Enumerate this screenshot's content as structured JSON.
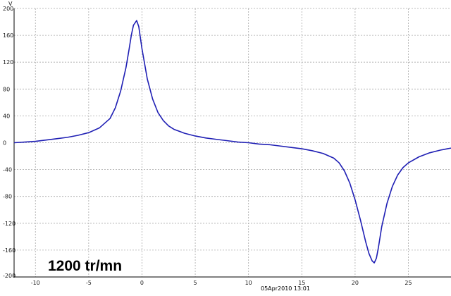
{
  "chart_data": {
    "type": "line",
    "title": "",
    "xlabel": "",
    "ylabel": "V",
    "xlim": [
      -12,
      29
    ],
    "ylim": [
      -200,
      200
    ],
    "x_ticks": [
      -10,
      -5,
      0,
      5,
      10,
      15,
      20,
      25
    ],
    "y_ticks": [
      200,
      160,
      120,
      80,
      40,
      0,
      -40,
      -80,
      -120,
      -160,
      -200
    ],
    "grid": true,
    "legend": "none",
    "series": [
      {
        "color": "#1f1fb4",
        "x": [
          -12,
          -11,
          -10,
          -9,
          -8,
          -7,
          -6,
          -5,
          -4,
          -3,
          -2.5,
          -2,
          -1.5,
          -1.2,
          -1,
          -0.8,
          -0.5,
          -0.3,
          0,
          0.5,
          1,
          1.5,
          2,
          2.5,
          3,
          4,
          5,
          6,
          7,
          8,
          9,
          10,
          11,
          12,
          13,
          14,
          15,
          16,
          17,
          18,
          18.5,
          19,
          19.5,
          20,
          20.5,
          21,
          21.3,
          21.6,
          21.8,
          22,
          22.2,
          22.5,
          23,
          23.5,
          24,
          24.5,
          25,
          26,
          27,
          28,
          29
        ],
        "y": [
          0,
          1,
          2,
          4,
          6,
          8,
          11,
          15,
          22,
          36,
          52,
          77,
          112,
          140,
          160,
          175,
          182,
          173,
          140,
          95,
          65,
          45,
          33,
          25,
          20,
          14,
          10,
          7,
          5,
          3,
          1,
          0,
          -2,
          -3,
          -5,
          -7,
          -9,
          -12,
          -16,
          -23,
          -30,
          -42,
          -60,
          -85,
          -115,
          -148,
          -165,
          -176,
          -179,
          -172,
          -155,
          -125,
          -90,
          -65,
          -48,
          -37,
          -30,
          -21,
          -15,
          -11,
          -8
        ]
      }
    ],
    "annotations": [
      "1200 tr/mn",
      "05Apr2010 13:01"
    ]
  }
}
